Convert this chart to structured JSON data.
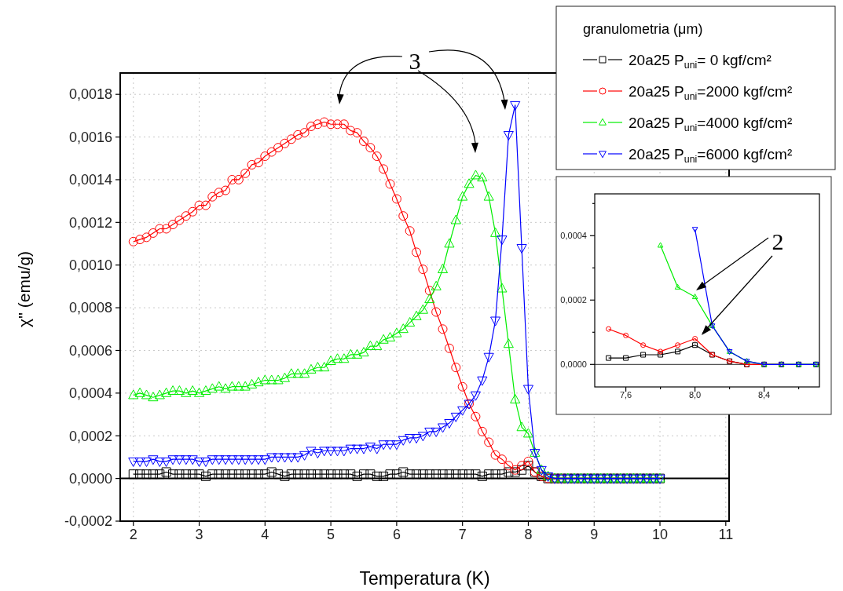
{
  "chart_data": [
    {
      "type": "line",
      "xlabel": "Temperatura (K)",
      "ylabel": "χ'' (emu/g)",
      "legend_title": "granulometria (μm)",
      "legend": "top right",
      "grid": true,
      "x": [
        2,
        2.1,
        2.2,
        2.3,
        2.4,
        2.5,
        2.6,
        2.7,
        2.8,
        2.9,
        3,
        3.1,
        3.2,
        3.3,
        3.4,
        3.5,
        3.6,
        3.7,
        3.8,
        3.9,
        4,
        4.1,
        4.2,
        4.3,
        4.4,
        4.5,
        4.6,
        4.7,
        4.8,
        4.9,
        5,
        5.1,
        5.2,
        5.3,
        5.4,
        5.5,
        5.6,
        5.7,
        5.8,
        5.9,
        6,
        6.1,
        6.2,
        6.3,
        6.4,
        6.5,
        6.6,
        6.7,
        6.8,
        6.9,
        7,
        7.1,
        7.2,
        7.3,
        7.4,
        7.5,
        7.6,
        7.7,
        7.8,
        7.9,
        8,
        8.1,
        8.2,
        8.3,
        8.4,
        8.5,
        8.6,
        8.7,
        8.8,
        8.9,
        9,
        9.1,
        9.2,
        9.3,
        9.4,
        9.5,
        9.6,
        9.7,
        9.8,
        9.9,
        10
      ],
      "series": [
        {
          "name": "20a25 P$_{uni}$= 0 kgf/cm²",
          "color": "#000000",
          "marker": "square",
          "values": [
            2e-05,
            2e-05,
            2e-05,
            2e-05,
            2e-05,
            3e-05,
            2e-05,
            2e-05,
            2e-05,
            2e-05,
            2e-05,
            1e-05,
            2e-05,
            2e-05,
            2e-05,
            2e-05,
            2e-05,
            2e-05,
            2e-05,
            2e-05,
            2e-05,
            3e-05,
            2e-05,
            1e-05,
            2e-05,
            2e-05,
            2e-05,
            2e-05,
            2e-05,
            2e-05,
            2e-05,
            2e-05,
            2e-05,
            2e-05,
            1e-05,
            2e-05,
            2e-05,
            1e-05,
            1e-05,
            2e-05,
            2e-05,
            3e-05,
            2e-05,
            2e-05,
            2e-05,
            2e-05,
            2e-05,
            2e-05,
            2e-05,
            2e-05,
            2e-05,
            2e-05,
            2e-05,
            1e-05,
            2e-05,
            2e-05,
            2e-05,
            3e-05,
            3e-05,
            4e-05,
            6e-05,
            3e-05,
            1e-05,
            0,
            0,
            0,
            0,
            0,
            0,
            0,
            0,
            0,
            0,
            0,
            0,
            0,
            0,
            0,
            0,
            0,
            0
          ]
        },
        {
          "name": "20a25 P$_{uni}$=2000 kgf/cm²",
          "color": "#ff0000",
          "marker": "circle",
          "values": [
            0.00111,
            0.00112,
            0.00113,
            0.00115,
            0.00117,
            0.00117,
            0.00119,
            0.00121,
            0.00123,
            0.00125,
            0.00128,
            0.00128,
            0.00132,
            0.00134,
            0.00135,
            0.0014,
            0.0014,
            0.00143,
            0.00147,
            0.00148,
            0.00151,
            0.00153,
            0.00155,
            0.00157,
            0.00159,
            0.00161,
            0.00162,
            0.00165,
            0.00166,
            0.00167,
            0.00166,
            0.00166,
            0.00166,
            0.00163,
            0.00162,
            0.00158,
            0.00155,
            0.00151,
            0.00145,
            0.00138,
            0.00131,
            0.00123,
            0.00116,
            0.00106,
            0.00098,
            0.00088,
            0.00078,
            0.0007,
            0.00061,
            0.00052,
            0.00043,
            0.00035,
            0.00029,
            0.00022,
            0.00017,
            0.00011,
            9e-05,
            6e-05,
            4e-05,
            6e-05,
            8e-05,
            3e-05,
            1e-05,
            0,
            0,
            0,
            null,
            null,
            null,
            null,
            null,
            null,
            null,
            null,
            null,
            null,
            null,
            null,
            null,
            null,
            null
          ]
        },
        {
          "name": "20a25 P$_{uni}$=4000 kgf/cm²",
          "color": "#00ee00",
          "marker": "triangle",
          "values": [
            0.00039,
            0.0004,
            0.00039,
            0.00038,
            0.00039,
            0.0004,
            0.00041,
            0.00041,
            0.0004,
            0.00041,
            0.0004,
            0.00041,
            0.00042,
            0.00043,
            0.00042,
            0.00043,
            0.00043,
            0.00043,
            0.00044,
            0.00045,
            0.00046,
            0.00046,
            0.00046,
            0.00047,
            0.00049,
            0.00049,
            0.00049,
            0.00051,
            0.00052,
            0.00052,
            0.00055,
            0.00056,
            0.00056,
            0.00058,
            0.00058,
            0.00059,
            0.00062,
            0.00062,
            0.00065,
            0.00066,
            0.00068,
            0.0007,
            0.00073,
            0.00076,
            0.00079,
            0.00084,
            0.0009,
            0.00098,
            0.0011,
            0.00121,
            0.00132,
            0.00138,
            0.00142,
            0.00141,
            0.00132,
            0.00115,
            0.00089,
            0.00063,
            0.00037,
            0.00024,
            0.00021,
            0.00012,
            4e-05,
            1e-05,
            0,
            0,
            0,
            0,
            0,
            0,
            0,
            0,
            0,
            0,
            0,
            0,
            0,
            0,
            0,
            0,
            0
          ]
        },
        {
          "name": "20a25 P$_{uni}$=6000 kgf/cm²",
          "color": "#0000ff",
          "marker": "triangle-down",
          "values": [
            8e-05,
            8e-05,
            8e-05,
            9e-05,
            8e-05,
            8e-05,
            9e-05,
            9e-05,
            9e-05,
            9e-05,
            8e-05,
            8e-05,
            9e-05,
            9e-05,
            9e-05,
            9e-05,
            9e-05,
            9e-05,
            9e-05,
            9e-05,
            9e-05,
            0.0001,
            0.0001,
            0.0001,
            0.0001,
            0.0001,
            0.00011,
            0.00013,
            0.00012,
            0.00013,
            0.00013,
            0.00013,
            0.00013,
            0.00014,
            0.00014,
            0.00014,
            0.00015,
            0.00014,
            0.00016,
            0.00016,
            0.00016,
            0.00018,
            0.00019,
            0.00019,
            0.0002,
            0.00022,
            0.00022,
            0.00024,
            0.00026,
            0.00029,
            0.00032,
            0.00035,
            0.00039,
            0.00046,
            0.00057,
            0.00074,
            0.00112,
            0.00161,
            0.00175,
            0.00108,
            0.00042,
            0.00012,
            4e-05,
            1e-05,
            0,
            0,
            0,
            0,
            0,
            0,
            0,
            0,
            0,
            0,
            0,
            0,
            0,
            0,
            0,
            0,
            0
          ]
        }
      ],
      "xlim": [
        1.8,
        11.05
      ],
      "ylim": [
        -0.0002,
        0.0019
      ],
      "xticks": [
        2,
        3,
        4,
        5,
        6,
        7,
        8,
        9,
        10,
        11
      ],
      "yticks": [
        {
          "value": -0.0002,
          "label": "-0,0002"
        },
        {
          "value": 0,
          "label": "0,0000"
        },
        {
          "value": 0.0002,
          "label": "0,0002"
        },
        {
          "value": 0.0004,
          "label": "0,0004"
        },
        {
          "value": 0.0006,
          "label": "0,0006"
        },
        {
          "value": 0.0008,
          "label": "0,0008"
        },
        {
          "value": 0.001,
          "label": "0,0010"
        },
        {
          "value": 0.0012,
          "label": "0,0012"
        },
        {
          "value": 0.0014,
          "label": "0,0014"
        },
        {
          "value": 0.0016,
          "label": "0,0016"
        },
        {
          "value": 0.0018,
          "label": "0,0018"
        }
      ],
      "ref_lines": [
        {
          "axis": "y",
          "value": 0,
          "color": "#000000"
        }
      ],
      "annotations": [
        "3"
      ]
    },
    {
      "type": "line",
      "x": [
        7.5,
        7.6,
        7.7,
        7.8,
        7.9,
        8,
        8.1,
        8.2,
        8.3,
        8.4,
        8.5,
        8.6,
        8.7
      ],
      "series": [
        {
          "color": "#000000",
          "marker": "square",
          "values": [
            2e-05,
            2e-05,
            3e-05,
            3e-05,
            4e-05,
            6e-05,
            3e-05,
            1e-05,
            0,
            0,
            0,
            0,
            0
          ]
        },
        {
          "color": "#ff0000",
          "marker": "circle",
          "values": [
            0.00011,
            9e-05,
            6e-05,
            4e-05,
            6e-05,
            8e-05,
            3e-05,
            1e-05,
            0,
            0,
            0,
            null,
            null
          ]
        },
        {
          "color": "#00ee00",
          "marker": "triangle",
          "values": [
            null,
            null,
            null,
            0.00037,
            0.00024,
            0.00021,
            0.00012,
            4e-05,
            1e-05,
            0,
            0,
            0,
            0
          ]
        },
        {
          "color": "#0000ff",
          "marker": "triangle-down",
          "values": [
            null,
            null,
            null,
            null,
            null,
            0.00042,
            0.00012,
            4e-05,
            1e-05,
            0,
            0,
            0,
            0
          ]
        }
      ],
      "xlim": [
        7.42,
        8.72
      ],
      "ylim": [
        -7e-05,
        0.00053
      ],
      "xticks": [
        {
          "value": 7.6,
          "label": "7,6"
        },
        {
          "value": 7.8,
          "label": null
        },
        {
          "value": 8,
          "label": "8,0"
        },
        {
          "value": 8.2,
          "label": null
        },
        {
          "value": 8.4,
          "label": "8,4"
        },
        {
          "value": 8.6,
          "label": null
        }
      ],
      "yticks": [
        {
          "value": 0,
          "label": "0,0000"
        },
        {
          "value": 0.0001,
          "label": null
        },
        {
          "value": 0.0002,
          "label": "0,0002"
        },
        {
          "value": 0.0003,
          "label": null
        },
        {
          "value": 0.0004,
          "label": "0,0004"
        },
        {
          "value": 0.0005,
          "label": null
        }
      ],
      "ref_lines": [
        {
          "axis": "y",
          "value": 0,
          "color": "#555555"
        }
      ],
      "annotations": [
        "2"
      ]
    }
  ]
}
